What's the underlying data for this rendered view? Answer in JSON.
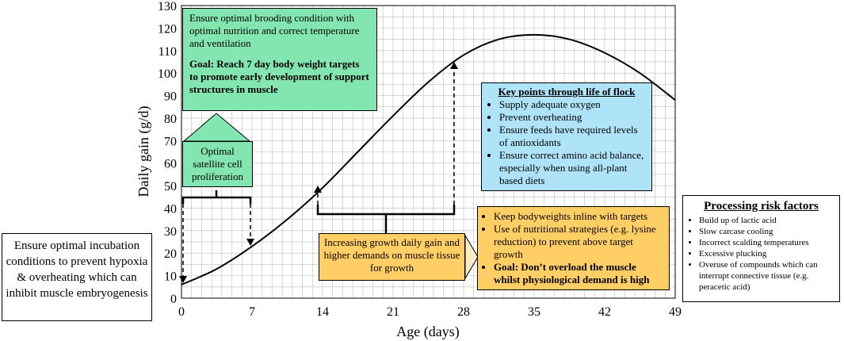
{
  "chart_data": {
    "type": "line",
    "xlabel": "Age (days)",
    "ylabel": "Daily gain (g/d)",
    "x_ticks": [
      0,
      7,
      14,
      21,
      28,
      35,
      42,
      49
    ],
    "y_ticks": [
      0,
      10,
      20,
      30,
      40,
      50,
      60,
      70,
      80,
      90,
      100,
      110,
      120,
      130
    ],
    "xlim": [
      0,
      49
    ],
    "ylim": [
      0,
      130
    ],
    "grid": true,
    "series": [
      {
        "x": [
          0,
          3.5,
          7,
          10.5,
          14,
          17.5,
          21,
          24.5,
          28,
          31.5,
          35,
          38.5,
          42,
          45.5,
          49
        ],
        "y": [
          6,
          13,
          23,
          35,
          49,
          65,
          81,
          96,
          108,
          115,
          117,
          115,
          109,
          100,
          88
        ]
      }
    ]
  },
  "annotations": {
    "green_box": {
      "text": "Ensure optimal brooding condition with optimal nutrition and correct temperature and ventilation",
      "goal": "Goal: Reach 7 day body weight targets to promote early development of support structures in muscle"
    },
    "satellite_box": {
      "text": "Optimal satellite cell proliferation"
    },
    "key_points": {
      "title": "Key points through life of flock",
      "items": [
        "Supply adequate oxygen",
        "Prevent overheating",
        "Ensure feeds have required levels of antioxidants",
        "Ensure correct amino acid balance, especially when using all-plant based diets"
      ]
    },
    "growth_box": {
      "text": "Increasing growth daily gain and higher demands on muscle tissue for growth"
    },
    "growth_points": {
      "items": [
        "Keep bodyweights inline with targets",
        "Use of nutritional strategies (e.g. lysine reduction) to prevent above target growth"
      ],
      "goal": "Goal: Don’t overload the muscle whilst physiological demand is high"
    },
    "incubation_box": {
      "text": "Ensure optimal incubation conditions to prevent hypoxia & overheating which can inhibit muscle embryogenesis"
    },
    "risk_box": {
      "title": "Processing risk factors",
      "items": [
        "Build up of lactic acid",
        "Slow carcase cooling",
        "Incorrect scalding temperatures",
        "Excessive plucking",
        "Overuse of compounds which can interrupt connective tissue (e.g. peracetic acid)"
      ]
    }
  },
  "colors": {
    "green": "#83e6b0",
    "blue": "#aee3f8",
    "yellow": "#ffcf66",
    "light_yellow": "#fdebc8",
    "grid": "#bdbdbd"
  }
}
